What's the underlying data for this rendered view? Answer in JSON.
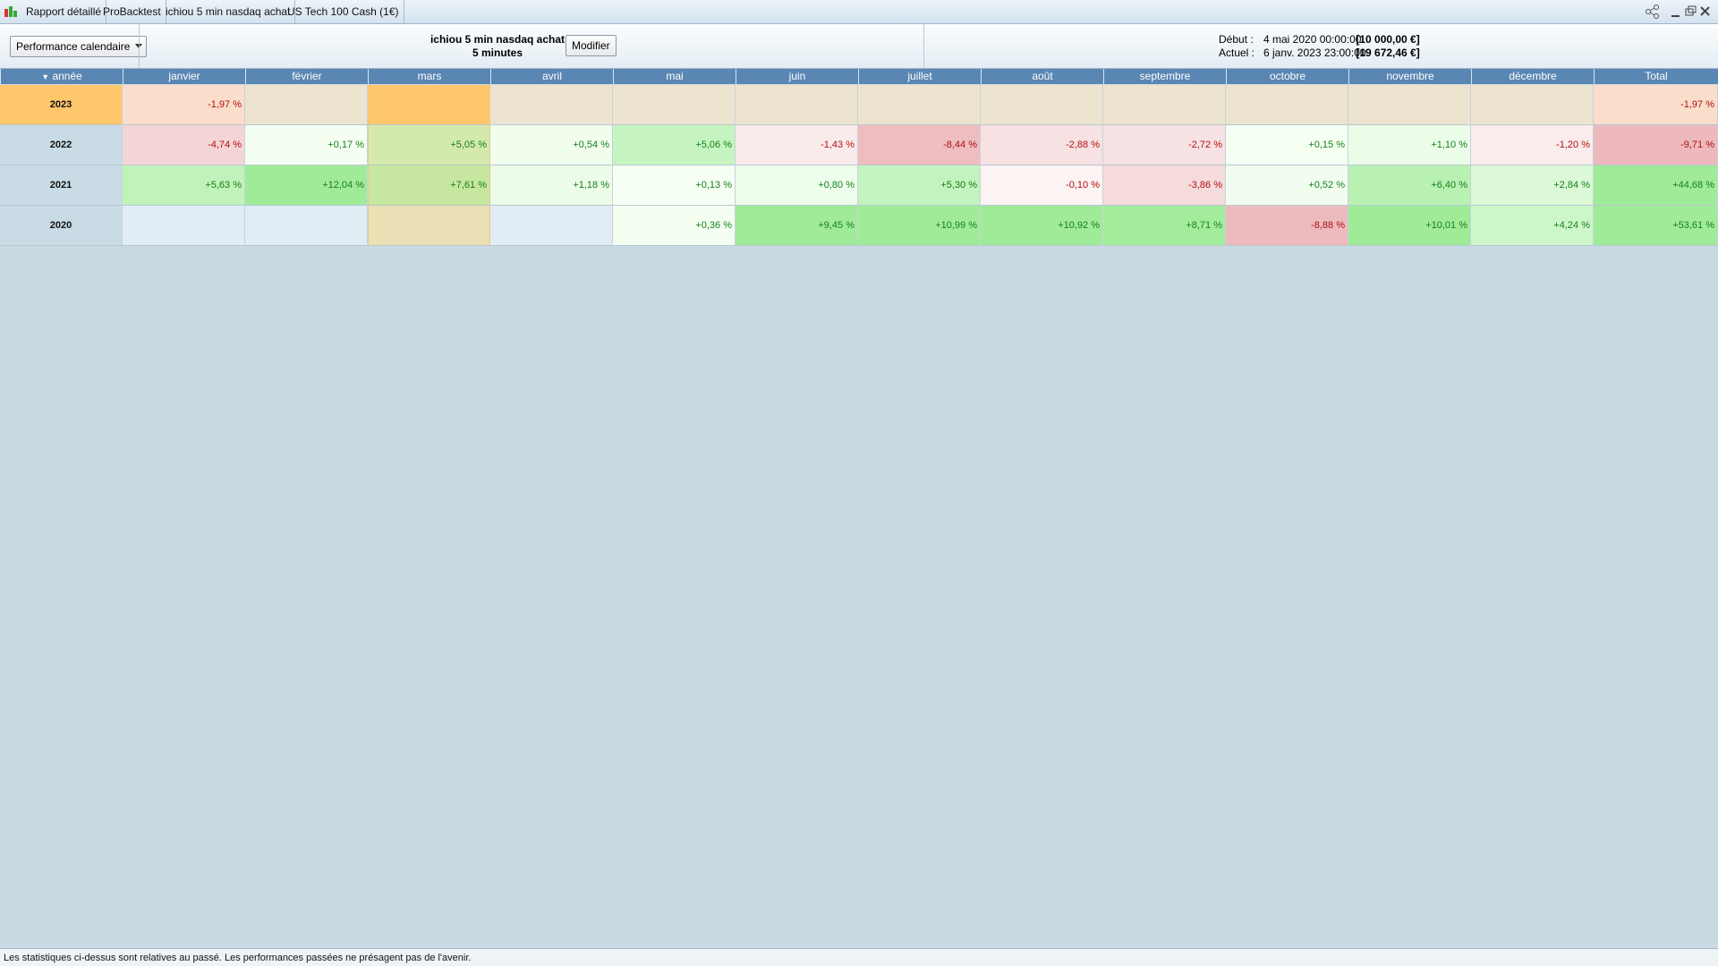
{
  "tabs": [
    "Rapport détaillé",
    "ProBacktest",
    "ichiou 5 min nasdaq achat",
    "US Tech 100 Cash (1€)"
  ],
  "toolbar": {
    "view": "Performance calendaire",
    "strategy": "ichiou 5 min nasdaq achat",
    "timeframe": "5 minutes",
    "button": "Modifier",
    "start_label": "Début :",
    "start_date": "4 mai 2020 00:00:00",
    "start_capital": "[10 000,00 €]",
    "current_label": "Actuel :",
    "current_date": "6 janv. 2023 23:00:00",
    "current_capital": "[19 672,46 €]"
  },
  "table": {
    "header": [
      "année",
      "janvier",
      "février",
      "mars",
      "avril",
      "mai",
      "juin",
      "juillet",
      "août",
      "septembre",
      "octobre",
      "novembre",
      "décembre",
      "Total"
    ],
    "rows": [
      [
        "2023",
        "-1,97 %",
        null,
        null,
        null,
        null,
        null,
        null,
        null,
        null,
        null,
        null,
        null,
        "-1,97 %"
      ],
      [
        "2022",
        "-4,74 %",
        "+0,17 %",
        "+5,05 %",
        "+0,54 %",
        "+5,06 %",
        "-1,43 %",
        "-8,44 %",
        "-2,88 %",
        "-2,72 %",
        "+0,15 %",
        "+1,10 %",
        "-1,20 %",
        "-9,71 %"
      ],
      [
        "2021",
        "+5,63 %",
        "+12,04 %",
        "+7,61 %",
        "+1,18 %",
        "+0,13 %",
        "+0,80 %",
        "+5,30 %",
        "-0,10 %",
        "-3,86 %",
        "+0,52 %",
        "+6,40 %",
        "+2,84 %",
        "+44,68 %"
      ],
      [
        "2020",
        null,
        null,
        null,
        null,
        "+0,36 %",
        "+9,45 %",
        "+10,99 %",
        "+10,92 %",
        "+8,71 %",
        "-8,88 %",
        "+10,01 %",
        "+4,24 %",
        "+53,61 %"
      ]
    ]
  },
  "footer": "Les statistiques ci-dessus sont relatives au passé. Les performances passées ne présagent pas de l'avenir."
}
